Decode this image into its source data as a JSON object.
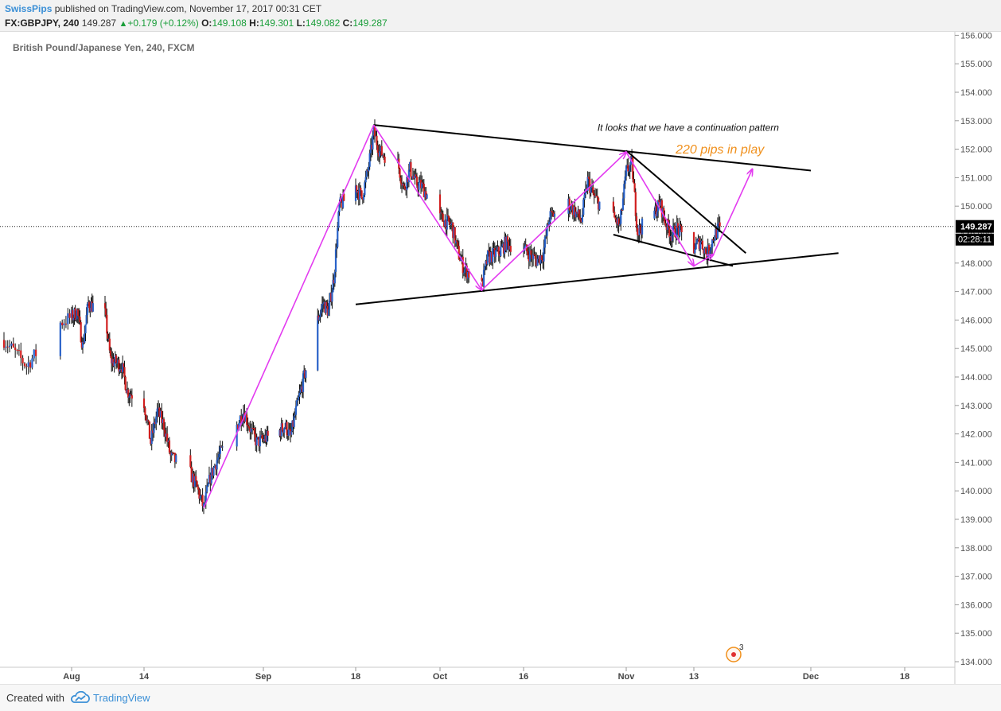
{
  "header": {
    "author": "SwissPips",
    "published": "published on TradingView.com, November 17, 2017 00:31 CET",
    "symbol": "FX:GBPJPY, 240",
    "last": "149.287",
    "change": "+0.179 (+0.12%)",
    "open_label": "O:",
    "open": "149.108",
    "high_label": "H:",
    "high": "149.301",
    "low_label": "L:",
    "low": "149.082",
    "close_label": "C:",
    "close": "149.287"
  },
  "footer": {
    "created_with": "Created with",
    "brand": "TradingView"
  },
  "colors": {
    "up": "#2962c9",
    "down": "#d11f1f",
    "wick": "#111111",
    "annotation": "#e33bf0",
    "trendline": "#000000",
    "orange_text": "#f0901c"
  },
  "chart_data": {
    "type": "candlestick",
    "title": "British Pound/Japanese Yen, 240, FXCM",
    "timeframe": "240",
    "ylim": [
      133.9,
      156.3
    ],
    "y_ticks": [
      "134.000",
      "135.000",
      "136.000",
      "137.000",
      "138.000",
      "139.000",
      "140.000",
      "141.000",
      "142.000",
      "143.000",
      "144.000",
      "145.000",
      "146.000",
      "147.000",
      "148.000",
      "149.000",
      "150.000",
      "151.000",
      "152.000",
      "153.000",
      "154.000",
      "155.000",
      "156.000"
    ],
    "x_ticks": [
      {
        "label": "Aug",
        "date": "2017-08-01"
      },
      {
        "label": "14",
        "date": "2017-08-14"
      },
      {
        "label": "Sep",
        "date": "2017-09-01"
      },
      {
        "label": "18",
        "date": "2017-09-18"
      },
      {
        "label": "Oct",
        "date": "2017-10-02"
      },
      {
        "label": "16",
        "date": "2017-10-16"
      },
      {
        "label": "Nov",
        "date": "2017-11-01"
      },
      {
        "label": "13",
        "date": "2017-11-13"
      },
      {
        "label": "Dec",
        "date": "2017-12-01"
      },
      {
        "label": "18",
        "date": "2017-12-18"
      }
    ],
    "price_path": [
      [
        "2017-07-26",
        145.3
      ],
      [
        "2017-07-28",
        144.4
      ],
      [
        "2017-07-31",
        145.9
      ],
      [
        "2017-08-02",
        146.3
      ],
      [
        "2017-08-03",
        145.1
      ],
      [
        "2017-08-04",
        146.6
      ],
      [
        "2017-08-07",
        146.2
      ],
      [
        "2017-08-08",
        144.6
      ],
      [
        "2017-08-10",
        144.4
      ],
      [
        "2017-08-11",
        143.5
      ],
      [
        "2017-08-14",
        143.1
      ],
      [
        "2017-08-15",
        141.7
      ],
      [
        "2017-08-16",
        142.8
      ],
      [
        "2017-08-17",
        142.3
      ],
      [
        "2017-08-18",
        141.2
      ],
      [
        "2017-08-21",
        140.6
      ],
      [
        "2017-08-22",
        140.1
      ],
      [
        "2017-08-23",
        139.4
      ],
      [
        "2017-08-24",
        140.5
      ],
      [
        "2017-08-25",
        141.1
      ],
      [
        "2017-08-28",
        142.3
      ],
      [
        "2017-08-29",
        142.8
      ],
      [
        "2017-08-30",
        142.2
      ],
      [
        "2017-08-31",
        141.7
      ],
      [
        "2017-09-04",
        142.1
      ],
      [
        "2017-09-05",
        142.3
      ],
      [
        "2017-09-06",
        141.9
      ],
      [
        "2017-09-07",
        142.8
      ],
      [
        "2017-09-08",
        143.6
      ],
      [
        "2017-09-11",
        146.0
      ],
      [
        "2017-09-12",
        146.6
      ],
      [
        "2017-09-13",
        146.3
      ],
      [
        "2017-09-14",
        147.5
      ],
      [
        "2017-09-15",
        150.0
      ],
      [
        "2017-09-18",
        150.7
      ],
      [
        "2017-09-19",
        150.3
      ],
      [
        "2017-09-20",
        151.2
      ],
      [
        "2017-09-21",
        152.6
      ],
      [
        "2017-09-22",
        151.9
      ],
      [
        "2017-09-25",
        151.5
      ],
      [
        "2017-09-26",
        150.6
      ],
      [
        "2017-09-27",
        151.3
      ],
      [
        "2017-09-28",
        150.8
      ],
      [
        "2017-09-29",
        150.7
      ],
      [
        "2017-10-02",
        149.6
      ],
      [
        "2017-10-04",
        149.3
      ],
      [
        "2017-10-05",
        148.4
      ],
      [
        "2017-10-06",
        147.8
      ],
      [
        "2017-10-09",
        147.2
      ],
      [
        "2017-10-10",
        148.2
      ],
      [
        "2017-10-12",
        148.4
      ],
      [
        "2017-10-13",
        148.7
      ],
      [
        "2017-10-16",
        148.5
      ],
      [
        "2017-10-18",
        148.1
      ],
      [
        "2017-10-19",
        148.3
      ],
      [
        "2017-10-20",
        149.6
      ],
      [
        "2017-10-23",
        150.1
      ],
      [
        "2017-10-25",
        149.5
      ],
      [
        "2017-10-26",
        150.9
      ],
      [
        "2017-10-27",
        150.3
      ],
      [
        "2017-10-30",
        149.6
      ],
      [
        "2017-10-31",
        149.3
      ],
      [
        "2017-11-01",
        151.2
      ],
      [
        "2017-11-02",
        151.5
      ],
      [
        "2017-11-03",
        149.1
      ],
      [
        "2017-11-06",
        149.8
      ],
      [
        "2017-11-07",
        150.1
      ],
      [
        "2017-11-08",
        149.4
      ],
      [
        "2017-11-09",
        149.0
      ],
      [
        "2017-11-10",
        149.2
      ],
      [
        "2017-11-13",
        148.5
      ],
      [
        "2017-11-14",
        148.8
      ],
      [
        "2017-11-15",
        148.3
      ],
      [
        "2017-11-16",
        148.9
      ],
      [
        "2017-11-17",
        149.287
      ]
    ],
    "trendlines": [
      {
        "name": "upper",
        "from": [
          "2017-09-21",
          152.85
        ],
        "to": [
          "2017-12-01",
          151.25
        ]
      },
      {
        "name": "lower",
        "from": [
          "2017-09-18",
          146.55
        ],
        "to": [
          "2017-12-06",
          148.35
        ]
      },
      {
        "name": "wedge-top",
        "from": [
          "2017-11-01",
          151.95
        ],
        "to": [
          "2017-11-21",
          148.35
        ]
      },
      {
        "name": "wedge-bottom",
        "from": [
          "2017-10-30",
          149.0
        ],
        "to": [
          "2017-11-19",
          147.9
        ]
      }
    ],
    "zigzag": [
      [
        "2017-08-23",
        139.4
      ],
      [
        "2017-09-21",
        152.85
      ],
      [
        "2017-10-09",
        147.05
      ],
      [
        "2017-11-01",
        151.9
      ],
      [
        "2017-11-13",
        147.9
      ],
      [
        "2017-11-16",
        148.3
      ]
    ],
    "projection": {
      "from": [
        "2017-11-16",
        148.3
      ],
      "to": [
        "2017-11-22",
        151.3
      ]
    },
    "annotations": [
      {
        "text": "It looks that we have a continuation pattern",
        "at": [
          "2017-11-12",
          152.65
        ]
      },
      {
        "text": "220 pips in play",
        "at": [
          "2017-11-17",
          151.85
        ]
      }
    ],
    "last_price": {
      "value": "149.287",
      "countdown": "02:28:11"
    },
    "event_badge": "3"
  }
}
